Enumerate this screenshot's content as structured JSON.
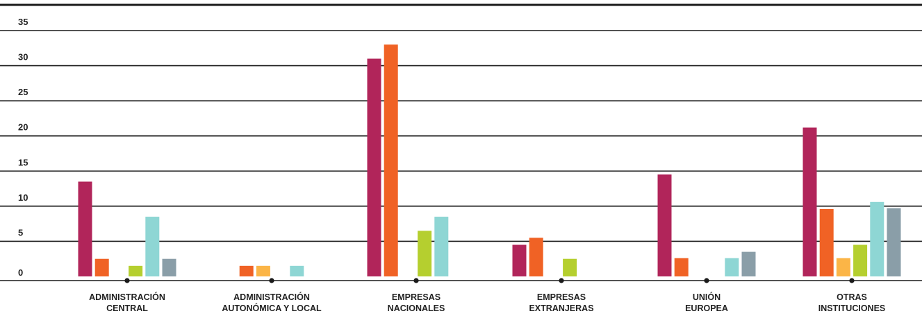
{
  "chart_data": {
    "type": "bar",
    "title": "",
    "xlabel": "",
    "ylabel": "",
    "ylim": [
      0,
      35
    ],
    "yticks": [
      0,
      5,
      10,
      15,
      20,
      25,
      30,
      35
    ],
    "grid": true,
    "legend": "none",
    "categories": [
      [
        "ADMINISTRACIÓN",
        "CENTRAL"
      ],
      [
        "ADMINISTRACIÓN",
        "AUTONÓMICA Y LOCAL"
      ],
      [
        "EMPRESAS",
        "NACIONALES"
      ],
      [
        "EMPRESAS",
        "EXTRANJERAS"
      ],
      [
        "UNIÓN",
        "EUROPEA"
      ],
      [
        "OTRAS",
        "INSTITUCIONES"
      ]
    ],
    "series": [
      {
        "color": "#b1255a",
        "values": [
          13.5,
          0,
          31,
          4.5,
          14.5,
          21.2
        ]
      },
      {
        "color": "#f06225",
        "values": [
          2.5,
          1.5,
          33,
          5.5,
          2.6,
          9.6
        ]
      },
      {
        "color": "#fbb547",
        "values": [
          0,
          1.5,
          0,
          0,
          0,
          2.6
        ]
      },
      {
        "color": "#b5cf2f",
        "values": [
          1.5,
          0,
          6.5,
          2.5,
          0,
          4.5
        ]
      },
      {
        "color": "#8ed6d4",
        "values": [
          8.5,
          1.5,
          8.5,
          0,
          2.6,
          10.6
        ]
      },
      {
        "color": "#8a9ea8",
        "values": [
          2.5,
          0,
          0,
          0,
          3.5,
          9.7
        ]
      }
    ]
  }
}
